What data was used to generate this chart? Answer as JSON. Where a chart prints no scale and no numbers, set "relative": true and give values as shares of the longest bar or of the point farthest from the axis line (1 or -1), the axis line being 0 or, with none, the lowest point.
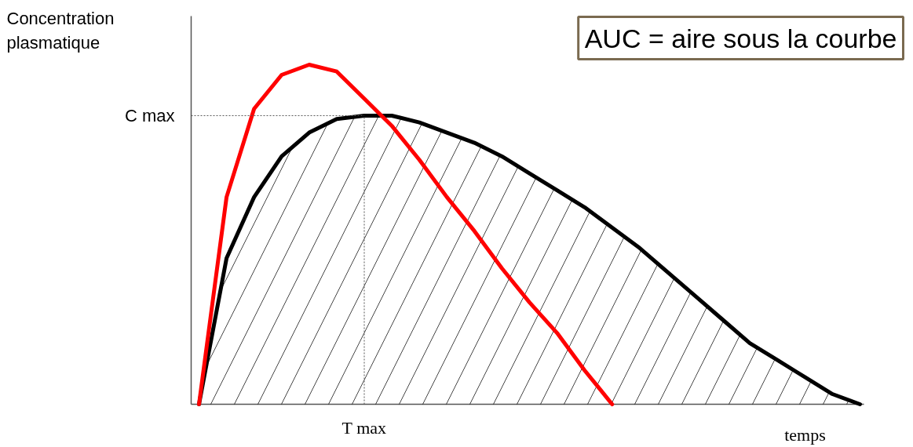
{
  "chart_data": {
    "type": "line",
    "relative": true,
    "ylabel": "Concentration plasmatique",
    "xlabel": "temps",
    "categories": [
      null,
      null,
      null,
      null,
      null,
      null,
      null,
      null,
      null,
      null,
      null,
      null,
      null,
      null,
      null,
      null,
      null,
      null,
      null,
      null,
      null,
      null,
      null,
      null,
      null
    ],
    "series": [
      {
        "type": "area",
        "color": "#000000",
        "values": [
          0,
          0.43,
          0.61,
          0.73,
          0.8,
          0.84,
          0.85,
          0.85,
          0.83,
          0.8,
          0.77,
          0.73,
          0.68,
          0.63,
          0.58,
          0.52,
          0.46,
          0.39,
          0.32,
          0.25,
          0.18,
          0.13,
          0.08,
          0.03,
          0
        ]
      },
      {
        "type": "line",
        "color": "#ff0000",
        "values": [
          0,
          0.61,
          0.87,
          0.97,
          1.0,
          0.98,
          0.9,
          0.82,
          0.72,
          0.61,
          0.51,
          0.4,
          0.3,
          0.21,
          0.1,
          0,
          null,
          null,
          null,
          null,
          null,
          null,
          null,
          null,
          null
        ]
      }
    ],
    "ref_lines": [
      {
        "axis": "y",
        "value": 0.85,
        "label": "C max",
        "line_style": "dotted"
      }
    ],
    "annotations": [
      "AUC = aire sous la courbe",
      {
        "text": "T max",
        "y": 0
      }
    ],
    "grid": false,
    "legend": false
  }
}
